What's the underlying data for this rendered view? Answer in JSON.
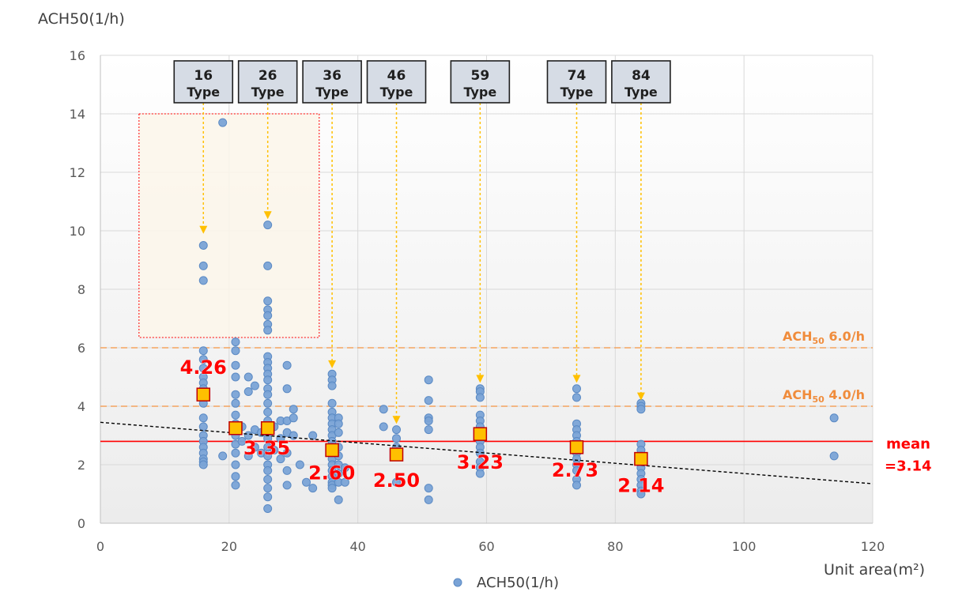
{
  "chart_data": {
    "type": "scatter",
    "ylabel": "ACH50(1/h)",
    "xlabel": "Unit area(m²)",
    "xlim": [
      0,
      120
    ],
    "ylim": [
      0,
      16
    ],
    "x_ticks": [
      "0",
      "20",
      "40",
      "60",
      "80",
      "100",
      "120"
    ],
    "y_ticks": [
      "0",
      "2",
      "4",
      "6",
      "8",
      "10",
      "12",
      "14",
      "16"
    ],
    "grid": true,
    "legend": {
      "position": "bottom",
      "label": "ACH50(1/h)"
    },
    "series": [
      {
        "name": "ACH50(1/h)",
        "color": "#7aa3d6",
        "points": [
          [
            16,
            9.5
          ],
          [
            16,
            8.8
          ],
          [
            16,
            8.3
          ],
          [
            16,
            5.9
          ],
          [
            16,
            5.6
          ],
          [
            16,
            5.3
          ],
          [
            16,
            5.0
          ],
          [
            16,
            4.8
          ],
          [
            16,
            4.6
          ],
          [
            16,
            4.4
          ],
          [
            16,
            4.1
          ],
          [
            16,
            3.6
          ],
          [
            16,
            3.3
          ],
          [
            16,
            3.0
          ],
          [
            16,
            2.8
          ],
          [
            16,
            2.6
          ],
          [
            16,
            2.4
          ],
          [
            16,
            2.2
          ],
          [
            16,
            2.1
          ],
          [
            16,
            2.0
          ],
          [
            19,
            13.7
          ],
          [
            19,
            2.3
          ],
          [
            21,
            6.2
          ],
          [
            21,
            5.9
          ],
          [
            21,
            5.4
          ],
          [
            21,
            5.0
          ],
          [
            21,
            4.4
          ],
          [
            21,
            4.1
          ],
          [
            21,
            3.7
          ],
          [
            21,
            3.4
          ],
          [
            21,
            3.0
          ],
          [
            21,
            2.7
          ],
          [
            21,
            2.4
          ],
          [
            21,
            2.0
          ],
          [
            21,
            1.6
          ],
          [
            21,
            1.3
          ],
          [
            22,
            3.3
          ],
          [
            22,
            2.8
          ],
          [
            23,
            5.0
          ],
          [
            23,
            4.5
          ],
          [
            23,
            3.0
          ],
          [
            23,
            2.3
          ],
          [
            24,
            4.7
          ],
          [
            24,
            3.2
          ],
          [
            24,
            2.6
          ],
          [
            25,
            3.1
          ],
          [
            25,
            2.4
          ],
          [
            26,
            10.2
          ],
          [
            26,
            8.8
          ],
          [
            26,
            7.6
          ],
          [
            26,
            7.3
          ],
          [
            26,
            7.1
          ],
          [
            26,
            6.8
          ],
          [
            26,
            6.6
          ],
          [
            26,
            5.7
          ],
          [
            26,
            5.5
          ],
          [
            26,
            5.3
          ],
          [
            26,
            5.1
          ],
          [
            26,
            4.9
          ],
          [
            26,
            4.6
          ],
          [
            26,
            4.4
          ],
          [
            26,
            4.1
          ],
          [
            26,
            3.8
          ],
          [
            26,
            3.5
          ],
          [
            26,
            3.2
          ],
          [
            26,
            2.9
          ],
          [
            26,
            2.6
          ],
          [
            26,
            2.3
          ],
          [
            26,
            2.0
          ],
          [
            26,
            1.8
          ],
          [
            26,
            1.5
          ],
          [
            26,
            1.2
          ],
          [
            26,
            0.9
          ],
          [
            26,
            0.5
          ],
          [
            27,
            3.3
          ],
          [
            27,
            2.5
          ],
          [
            28,
            3.5
          ],
          [
            28,
            2.9
          ],
          [
            28,
            2.2
          ],
          [
            29,
            5.4
          ],
          [
            29,
            4.6
          ],
          [
            29,
            3.5
          ],
          [
            29,
            3.1
          ],
          [
            29,
            2.4
          ],
          [
            29,
            1.8
          ],
          [
            29,
            1.3
          ],
          [
            30,
            3.9
          ],
          [
            30,
            3.6
          ],
          [
            30,
            3.0
          ],
          [
            31,
            2.0
          ],
          [
            32,
            1.4
          ],
          [
            33,
            1.2
          ],
          [
            33,
            3.0
          ],
          [
            36,
            5.1
          ],
          [
            36,
            4.9
          ],
          [
            36,
            4.7
          ],
          [
            36,
            4.1
          ],
          [
            36,
            3.8
          ],
          [
            36,
            3.6
          ],
          [
            36,
            3.4
          ],
          [
            36,
            3.2
          ],
          [
            36,
            3.0
          ],
          [
            36,
            2.8
          ],
          [
            36,
            2.6
          ],
          [
            36,
            2.4
          ],
          [
            36,
            2.2
          ],
          [
            36,
            2.0
          ],
          [
            36,
            1.8
          ],
          [
            36,
            1.6
          ],
          [
            36,
            1.4
          ],
          [
            36,
            1.3
          ],
          [
            36,
            1.2
          ],
          [
            37,
            3.6
          ],
          [
            37,
            3.4
          ],
          [
            37,
            3.1
          ],
          [
            37,
            2.6
          ],
          [
            37,
            2.3
          ],
          [
            37,
            2.0
          ],
          [
            37,
            1.7
          ],
          [
            37,
            1.4
          ],
          [
            37,
            0.8
          ],
          [
            38,
            1.9
          ],
          [
            38,
            1.4
          ],
          [
            44,
            3.9
          ],
          [
            44,
            3.3
          ],
          [
            46,
            3.2
          ],
          [
            46,
            2.9
          ],
          [
            46,
            2.6
          ],
          [
            46,
            1.4
          ],
          [
            51,
            4.9
          ],
          [
            51,
            4.2
          ],
          [
            51,
            3.6
          ],
          [
            51,
            3.5
          ],
          [
            51,
            3.2
          ],
          [
            51,
            1.2
          ],
          [
            51,
            0.8
          ],
          [
            59,
            4.6
          ],
          [
            59,
            4.5
          ],
          [
            59,
            4.3
          ],
          [
            59,
            3.7
          ],
          [
            59,
            3.5
          ],
          [
            59,
            3.3
          ],
          [
            59,
            3.0
          ],
          [
            59,
            2.8
          ],
          [
            59,
            2.6
          ],
          [
            59,
            2.4
          ],
          [
            59,
            2.1
          ],
          [
            59,
            1.9
          ],
          [
            59,
            1.7
          ],
          [
            74,
            4.6
          ],
          [
            74,
            4.3
          ],
          [
            74,
            3.4
          ],
          [
            74,
            3.2
          ],
          [
            74,
            3.0
          ],
          [
            74,
            2.8
          ],
          [
            74,
            2.6
          ],
          [
            74,
            2.4
          ],
          [
            74,
            2.2
          ],
          [
            74,
            2.0
          ],
          [
            74,
            1.8
          ],
          [
            74,
            1.5
          ],
          [
            74,
            1.3
          ],
          [
            84,
            4.1
          ],
          [
            84,
            4.0
          ],
          [
            84,
            3.9
          ],
          [
            84,
            2.7
          ],
          [
            84,
            2.5
          ],
          [
            84,
            2.3
          ],
          [
            84,
            2.1
          ],
          [
            84,
            1.9
          ],
          [
            84,
            1.7
          ],
          [
            84,
            1.5
          ],
          [
            84,
            1.3
          ],
          [
            84,
            1.1
          ],
          [
            84,
            1.0
          ],
          [
            114,
            3.6
          ],
          [
            114,
            2.3
          ]
        ]
      }
    ],
    "averages": [
      {
        "x": 16,
        "y": 4.4,
        "label": "4.26"
      },
      {
        "x": 21,
        "y": 3.25,
        "label": "3.35"
      },
      {
        "x": 26,
        "y": 3.25,
        "label": ""
      },
      {
        "x": 36,
        "y": 2.5,
        "label": "2.60"
      },
      {
        "x": 46,
        "y": 2.35,
        "label": "2.50"
      },
      {
        "x": 59,
        "y": 3.05,
        "label": "3.23"
      },
      {
        "x": 74,
        "y": 2.6,
        "label": "2.73"
      },
      {
        "x": 84,
        "y": 2.2,
        "label": "2.14"
      }
    ],
    "avg_marker_color": "#ffc000",
    "avg_label_color": "#ff0000",
    "type_boxes": [
      {
        "number": "16",
        "label": "Type",
        "x": 16,
        "arrow_to_y": 9.9
      },
      {
        "number": "26",
        "label": "Type",
        "x": 26,
        "arrow_to_y": 10.4
      },
      {
        "number": "36",
        "label": "Type",
        "x": 36,
        "arrow_to_y": 5.3
      },
      {
        "number": "46",
        "label": "Type",
        "x": 46,
        "arrow_to_y": 3.4
      },
      {
        "number": "59",
        "label": "Type",
        "x": 59,
        "arrow_to_y": 4.8
      },
      {
        "number": "74",
        "label": "Type",
        "x": 74,
        "arrow_to_y": 4.8
      },
      {
        "number": "84",
        "label": "Type",
        "x": 84,
        "arrow_to_y": 4.2
      }
    ],
    "reference_lines": [
      {
        "y": 6.0,
        "label_main": "ACH",
        "label_sub": "50",
        "label_rest": "6.0/h",
        "color": "#f4a460"
      },
      {
        "y": 4.0,
        "label_main": "ACH",
        "label_sub": "50",
        "label_rest": "4.0/h",
        "color": "#f4a460"
      }
    ],
    "mean_line": {
      "y": 2.8,
      "label_line1": "mean",
      "label_line2": "=3.14",
      "color": "#ff0000"
    },
    "trend_line": {
      "x1": 0,
      "y1": 3.45,
      "x2": 120,
      "y2": 1.35,
      "color": "#000000"
    },
    "highlight_box": {
      "x1": 6,
      "x2": 34,
      "y1": 6.35,
      "y2": 14.0,
      "color": "#ff0000"
    }
  }
}
